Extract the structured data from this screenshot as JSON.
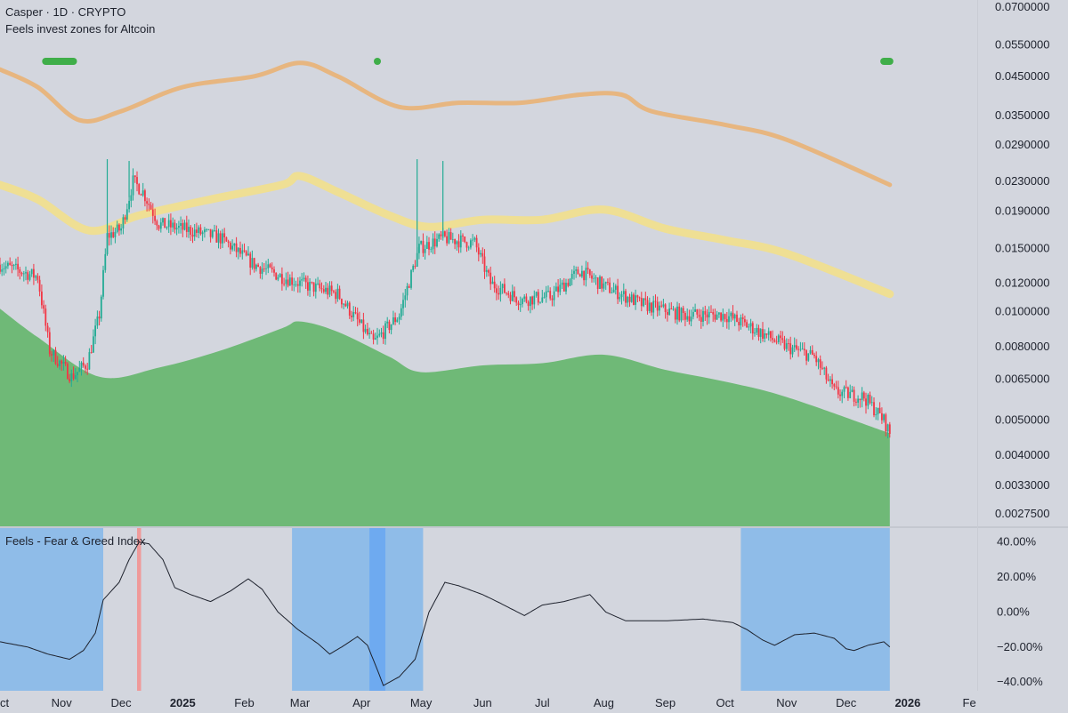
{
  "header": {
    "symbol_line": "Casper · 1D · CRYPTO",
    "indicator_title": "Feels invest zones for Altcoin",
    "sub_title": "Feels - Fear & Greed Index"
  },
  "colors": {
    "background": "#d3d6de",
    "candle_up": "#22ab94",
    "candle_down": "#f23645",
    "upper_band": "#e8b47a",
    "middle_band": "#f2e08c",
    "invest_zone_fill": "#6fb977",
    "signal_marker": "#3fae49",
    "fear_zone": "#8fbce8",
    "deep_fear_zone": "#6eaaf0",
    "greed_zone": "#ef9a9a",
    "index_line": "#1e222d",
    "axis_text": "#1e222d"
  },
  "chart_data": [
    {
      "type": "candlestick",
      "title": "Casper · 1D · CRYPTO",
      "subtitle": "Feels invest zones for Altcoin",
      "y_scale": "log",
      "y_ticks": [
        "0.0700000",
        "0.0550000",
        "0.0450000",
        "0.0350000",
        "0.0290000",
        "0.0230000",
        "0.0190000",
        "0.0150000",
        "0.0120000",
        "0.0100000",
        "0.0080000",
        "0.0065000",
        "0.0050000",
        "0.0040000",
        "0.0033000",
        "0.0027500"
      ],
      "x_ticks": [
        "ct",
        "Nov",
        "Dec",
        "2025",
        "Feb",
        "Mar",
        "Apr",
        "May",
        "Jun",
        "Jul",
        "Aug",
        "Sep",
        "Oct",
        "Nov",
        "Dec",
        "2026",
        "Fe"
      ],
      "x_range": [
        "2024-10-01",
        "2026-02-05"
      ],
      "price_anchors": [
        [
          "2024-10-01",
          0.0135
        ],
        [
          "2024-10-20",
          0.0125
        ],
        [
          "2024-10-26",
          0.0078
        ],
        [
          "2024-11-06",
          0.0066
        ],
        [
          "2024-11-14",
          0.0072
        ],
        [
          "2024-11-20",
          0.0098
        ],
        [
          "2024-11-24",
          0.0162
        ],
        [
          "2024-12-01",
          0.017
        ],
        [
          "2024-12-07",
          0.023
        ],
        [
          "2024-12-12",
          0.0215
        ],
        [
          "2024-12-20",
          0.0175
        ],
        [
          "2025-01-05",
          0.0168
        ],
        [
          "2025-01-20",
          0.016
        ],
        [
          "2025-02-06",
          0.0135
        ],
        [
          "2025-02-20",
          0.0125
        ],
        [
          "2025-03-05",
          0.0118
        ],
        [
          "2025-03-20",
          0.0112
        ],
        [
          "2025-04-07",
          0.0082
        ],
        [
          "2025-04-20",
          0.0098
        ],
        [
          "2025-04-30",
          0.015
        ],
        [
          "2025-05-12",
          0.016
        ],
        [
          "2025-05-28",
          0.0155
        ],
        [
          "2025-06-05",
          0.012
        ],
        [
          "2025-06-20",
          0.0108
        ],
        [
          "2025-07-05",
          0.011
        ],
        [
          "2025-07-20",
          0.013
        ],
        [
          "2025-08-01",
          0.0118
        ],
        [
          "2025-08-20",
          0.0105
        ],
        [
          "2025-09-10",
          0.0098
        ],
        [
          "2025-10-01",
          0.0098
        ],
        [
          "2025-10-15",
          0.009
        ],
        [
          "2025-11-01",
          0.008
        ],
        [
          "2025-11-15",
          0.0075
        ],
        [
          "2025-11-25",
          0.006
        ],
        [
          "2025-12-10",
          0.0058
        ],
        [
          "2025-12-20",
          0.005
        ],
        [
          "2025-12-23",
          0.0046
        ]
      ],
      "spikes": [
        [
          "2024-11-24",
          0.0265
        ],
        [
          "2024-12-05",
          0.0262
        ],
        [
          "2025-04-29",
          0.0265
        ],
        [
          "2025-05-12",
          0.0262
        ]
      ],
      "upper_band": [
        [
          "2024-10-01",
          0.047
        ],
        [
          "2024-10-20",
          0.042
        ],
        [
          "2024-11-10",
          0.034
        ],
        [
          "2024-12-01",
          0.036
        ],
        [
          "2025-01-01",
          0.042
        ],
        [
          "2025-02-06",
          0.045
        ],
        [
          "2025-03-01",
          0.049
        ],
        [
          "2025-03-20",
          0.045
        ],
        [
          "2025-04-20",
          0.037
        ],
        [
          "2025-05-20",
          0.038
        ],
        [
          "2025-06-20",
          0.038
        ],
        [
          "2025-07-20",
          0.04
        ],
        [
          "2025-08-10",
          0.04
        ],
        [
          "2025-08-25",
          0.036
        ],
        [
          "2025-10-01",
          0.033
        ],
        [
          "2025-11-01",
          0.03
        ],
        [
          "2025-12-23",
          0.0225
        ]
      ],
      "middle_band": [
        [
          "2024-10-01",
          0.0225
        ],
        [
          "2024-10-20",
          0.0205
        ],
        [
          "2024-11-15",
          0.0168
        ],
        [
          "2024-12-10",
          0.0185
        ],
        [
          "2025-01-15",
          0.0205
        ],
        [
          "2025-02-20",
          0.0225
        ],
        [
          "2025-03-01",
          0.0238
        ],
        [
          "2025-03-20",
          0.0215
        ],
        [
          "2025-04-15",
          0.0185
        ],
        [
          "2025-05-05",
          0.0172
        ],
        [
          "2025-06-01",
          0.018
        ],
        [
          "2025-07-01",
          0.018
        ],
        [
          "2025-08-01",
          0.0192
        ],
        [
          "2025-09-01",
          0.017
        ],
        [
          "2025-10-01",
          0.0158
        ],
        [
          "2025-11-01",
          0.0145
        ],
        [
          "2025-12-23",
          0.0112
        ]
      ],
      "invest_zone_top": [
        [
          "2024-10-01",
          0.0102
        ],
        [
          "2024-10-20",
          0.0085
        ],
        [
          "2024-11-20",
          0.0066
        ],
        [
          "2024-12-20",
          0.007
        ],
        [
          "2025-01-20",
          0.0078
        ],
        [
          "2025-02-20",
          0.009
        ],
        [
          "2025-03-01",
          0.0094
        ],
        [
          "2025-03-20",
          0.0088
        ],
        [
          "2025-04-15",
          0.0075
        ],
        [
          "2025-05-01",
          0.0068
        ],
        [
          "2025-06-01",
          0.0071
        ],
        [
          "2025-07-01",
          0.0072
        ],
        [
          "2025-08-01",
          0.0076
        ],
        [
          "2025-09-01",
          0.0069
        ],
        [
          "2025-10-01",
          0.0064
        ],
        [
          "2025-11-01",
          0.0058
        ],
        [
          "2025-12-23",
          0.0046
        ]
      ],
      "signals": [
        [
          "2024-10-24",
          "2024-11-07"
        ],
        [
          "2025-04-09",
          "2025-04-09"
        ],
        [
          "2025-12-20",
          "2025-12-23"
        ]
      ]
    },
    {
      "type": "line",
      "title": "Feels - Fear & Greed Index",
      "y_ticks": [
        "40.00%",
        "20.00%",
        "0.00%",
        "−20.00%",
        "−40.00%"
      ],
      "ylim": [
        -45,
        48
      ],
      "series": [
        {
          "values": [
            [
              "2024-10-01",
              -17
            ],
            [
              "2024-10-15",
              -20
            ],
            [
              "2024-10-25",
              -24
            ],
            [
              "2024-11-05",
              -27
            ],
            [
              "2024-11-12",
              -22
            ],
            [
              "2024-11-18",
              -12
            ],
            [
              "2024-11-22",
              7
            ],
            [
              "2024-11-30",
              17
            ],
            [
              "2024-12-05",
              30
            ],
            [
              "2024-12-10",
              40
            ],
            [
              "2024-12-15",
              39
            ],
            [
              "2024-12-22",
              30
            ],
            [
              "2024-12-28",
              14
            ],
            [
              "2025-01-05",
              10
            ],
            [
              "2025-01-15",
              6
            ],
            [
              "2025-01-25",
              12
            ],
            [
              "2025-02-03",
              19
            ],
            [
              "2025-02-10",
              13
            ],
            [
              "2025-02-18",
              0
            ],
            [
              "2025-02-28",
              -10
            ],
            [
              "2025-03-10",
              -18
            ],
            [
              "2025-03-16",
              -24
            ],
            [
              "2025-03-22",
              -20
            ],
            [
              "2025-03-30",
              -14
            ],
            [
              "2025-04-04",
              -19
            ],
            [
              "2025-04-09",
              -33
            ],
            [
              "2025-04-12",
              -42
            ],
            [
              "2025-04-20",
              -37
            ],
            [
              "2025-04-28",
              -27
            ],
            [
              "2025-05-05",
              0
            ],
            [
              "2025-05-13",
              17
            ],
            [
              "2025-05-20",
              15
            ],
            [
              "2025-06-01",
              10
            ],
            [
              "2025-06-10",
              5
            ],
            [
              "2025-06-22",
              -2
            ],
            [
              "2025-07-01",
              4
            ],
            [
              "2025-07-12",
              6
            ],
            [
              "2025-07-25",
              10
            ],
            [
              "2025-08-02",
              0
            ],
            [
              "2025-08-12",
              -5
            ],
            [
              "2025-09-01",
              -5
            ],
            [
              "2025-09-20",
              -4
            ],
            [
              "2025-10-05",
              -6
            ],
            [
              "2025-10-12",
              -10
            ],
            [
              "2025-10-20",
              -16
            ],
            [
              "2025-10-26",
              -19
            ],
            [
              "2025-11-05",
              -13
            ],
            [
              "2025-11-15",
              -12
            ],
            [
              "2025-11-25",
              -15
            ],
            [
              "2025-12-01",
              -21
            ],
            [
              "2025-12-05",
              -22
            ],
            [
              "2025-12-12",
              -19
            ],
            [
              "2025-12-20",
              -17
            ],
            [
              "2025-12-23",
              -20
            ]
          ]
        }
      ],
      "fear_zones": [
        [
          "2024-10-01",
          "2024-11-22"
        ],
        [
          "2025-02-25",
          "2025-05-02"
        ],
        [
          "2025-10-09",
          "2025-12-23"
        ]
      ],
      "deep_fear_zones": [
        [
          "2025-04-05",
          "2025-04-13"
        ]
      ],
      "greed_zones": [
        [
          "2024-12-09",
          "2024-12-11"
        ]
      ]
    }
  ]
}
